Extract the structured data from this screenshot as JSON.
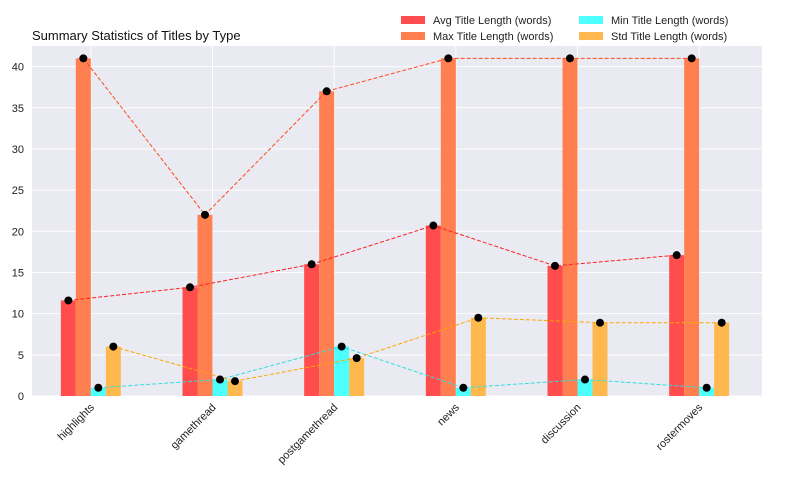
{
  "chart_data": {
    "type": "bar",
    "title": "Summary Statistics of Titles by Type",
    "xlabel": "",
    "ylabel": "",
    "categories": [
      "highlights",
      "gamethread",
      "postgamethread",
      "news",
      "discussion",
      "rostermoves"
    ],
    "ylim": [
      0,
      42.5
    ],
    "yticks": [
      0,
      5,
      10,
      15,
      20,
      25,
      30,
      35,
      40
    ],
    "grid": true,
    "legend_position": "top-right",
    "background_color": "#eaeaf2",
    "series": [
      {
        "name": "Avg Title Length (words)",
        "color": "#ff4d4d",
        "line_color": "#ff2020",
        "values": [
          11.6,
          13.2,
          16.0,
          20.7,
          15.8,
          17.1
        ]
      },
      {
        "name": "Max Title Length (words)",
        "color": "#ff7f50",
        "line_color": "#ff4a1a",
        "values": [
          41,
          22,
          37,
          41,
          41,
          41
        ]
      },
      {
        "name": "Min Title Length (words)",
        "color": "#4dffff",
        "line_color": "#33dddd",
        "values": [
          1,
          2,
          6,
          1,
          2,
          1
        ]
      },
      {
        "name": "Std Title Length (words)",
        "color": "#ffb84d",
        "line_color": "#ffa500",
        "values": [
          6.0,
          1.8,
          4.6,
          9.5,
          8.9,
          8.9
        ]
      }
    ]
  }
}
